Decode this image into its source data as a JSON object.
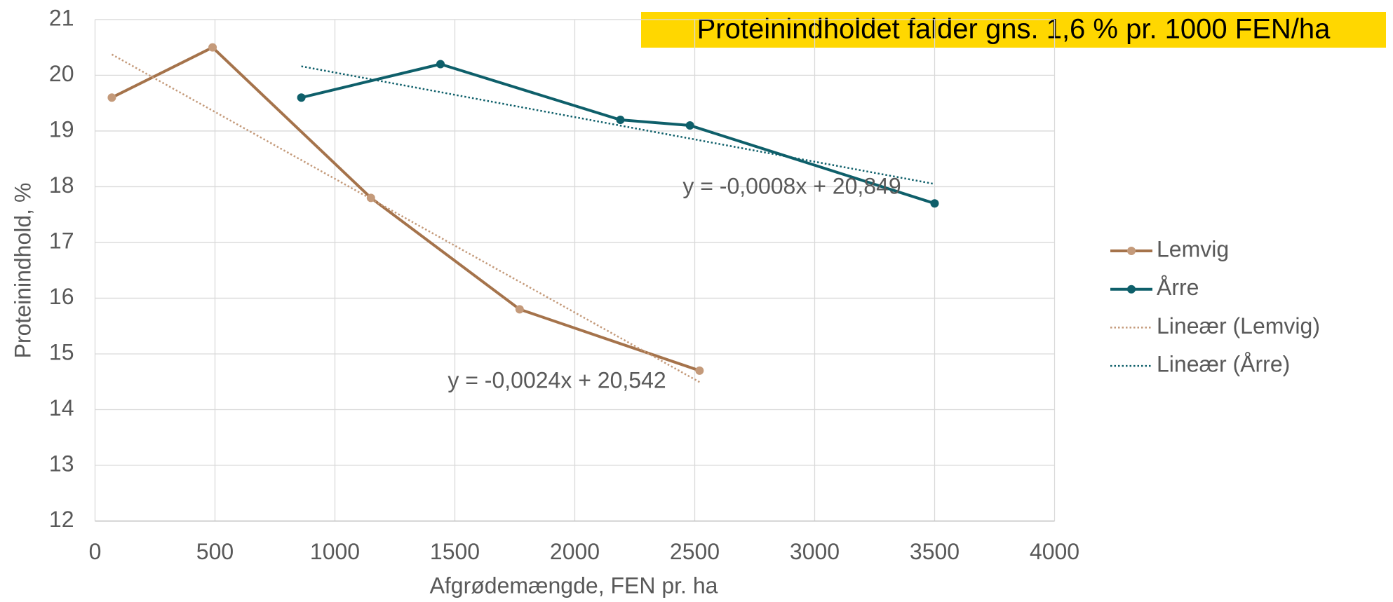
{
  "chart_data": {
    "type": "line",
    "title": "Proteinindholdet falder gns. 1,6 % pr. 1000 FEN/ha",
    "x_label": "Afgrødemængde, FEN pr. ha",
    "y_label": "Proteinindhold, %",
    "xlim": [
      0,
      4000
    ],
    "xticks": [
      0,
      500,
      1000,
      1500,
      2000,
      2500,
      3000,
      3500,
      4000
    ],
    "ylim": [
      12,
      21
    ],
    "yticks": [
      12,
      13,
      14,
      15,
      16,
      17,
      18,
      19,
      20,
      21
    ],
    "grid": true,
    "legend": "right",
    "series": [
      {
        "name": "Lemvig",
        "color": "#a5734b",
        "marker_color": "#c49a7a",
        "style": "solid",
        "markers": true,
        "x": [
          70,
          490,
          1150,
          1770,
          2520
        ],
        "values": [
          19.6,
          20.5,
          17.8,
          15.8,
          14.7
        ]
      },
      {
        "name": "Årre",
        "color": "#0e5f6a",
        "marker_color": "#0e5f6a",
        "style": "solid",
        "markers": true,
        "x": [
          860,
          1440,
          2190,
          2480,
          3500
        ],
        "values": [
          19.6,
          20.2,
          19.2,
          19.1,
          17.7
        ]
      },
      {
        "name": "Lineær (Lemvig)",
        "color": "#c49a7a",
        "style": "dotted",
        "markers": false,
        "x": [
          70,
          2520
        ],
        "values": [
          20.374,
          14.494
        ]
      },
      {
        "name": "Lineær (Årre)",
        "color": "#0e5f6a",
        "style": "dotted",
        "markers": false,
        "x": [
          860,
          3500
        ],
        "values": [
          20.161,
          18.049
        ]
      }
    ],
    "annotations": [
      "y = -0,0008x + 20,849",
      "y = -0,0024x + 20,542"
    ]
  }
}
